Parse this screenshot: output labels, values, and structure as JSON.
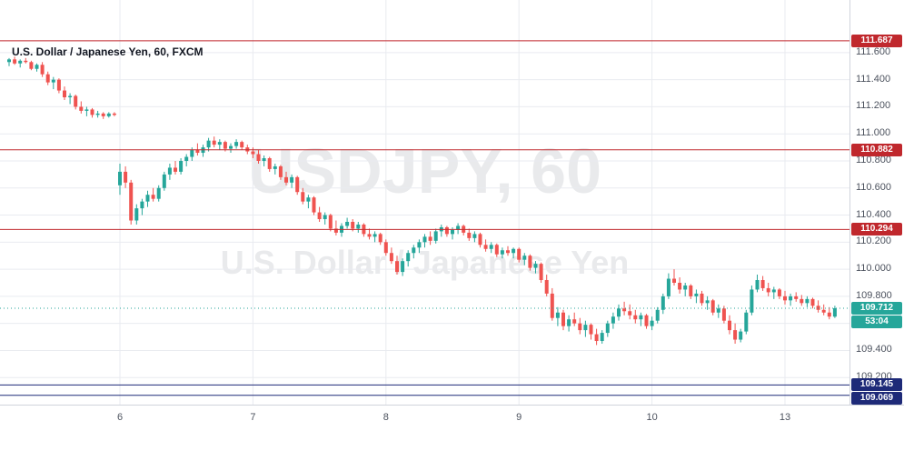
{
  "title": "U.S. Dollar / Japanese Yen, 60, FXCM",
  "watermark": {
    "line1": "USDJPY, 60",
    "line2": "U.S. Dollar / Japanese Yen"
  },
  "colors": {
    "up": "#26a69a",
    "down": "#ef5350",
    "resistance": "#c0282d",
    "support": "#1e2a78",
    "current": "#26a69a",
    "grid": "#e9ebf0",
    "axis_text": "#4c525e",
    "badge_text": "#ffffff"
  },
  "price_axis": {
    "labels": [
      {
        "text": "111.600",
        "price": 111.6
      },
      {
        "text": "111.400",
        "price": 111.4
      },
      {
        "text": "111.200",
        "price": 111.2
      },
      {
        "text": "111.000",
        "price": 111.0
      },
      {
        "text": "110.800",
        "price": 110.8
      },
      {
        "text": "110.600",
        "price": 110.6
      },
      {
        "text": "110.400",
        "price": 110.4
      },
      {
        "text": "110.200",
        "price": 110.2
      },
      {
        "text": "110.000",
        "price": 110.0
      },
      {
        "text": "109.800",
        "price": 109.8
      },
      {
        "text": "109.600",
        "price": 109.6
      },
      {
        "text": "109.400",
        "price": 109.4
      },
      {
        "text": "109.200",
        "price": 109.2
      }
    ],
    "badges": [
      {
        "text": "111.687",
        "price": 111.687,
        "type": "resistance"
      },
      {
        "text": "110.882",
        "price": 110.882,
        "type": "resistance"
      },
      {
        "text": "110.294",
        "price": 110.294,
        "type": "resistance"
      },
      {
        "text": "109.712",
        "price": 109.712,
        "type": "current"
      },
      {
        "text": "53:04",
        "type": "countdown"
      },
      {
        "text": "109.145",
        "price": 109.145,
        "type": "support"
      },
      {
        "text": "109.069",
        "price": 109.069,
        "type": "support"
      }
    ]
  },
  "time_axis": {
    "labels": [
      {
        "text": "6",
        "index": 20
      },
      {
        "text": "7",
        "index": 44
      },
      {
        "text": "8",
        "index": 68
      },
      {
        "text": "9",
        "index": 92
      },
      {
        "text": "10",
        "index": 116
      },
      {
        "text": "13",
        "index": 140
      }
    ]
  },
  "chart_data": {
    "type": "candlestick",
    "symbol": "USDJPY",
    "interval": "60",
    "exchange": "FXCM",
    "title": "U.S. Dollar / Japanese Yen, 60, FXCM",
    "price_range": [
      109.0,
      111.72
    ],
    "grid": true,
    "levels": {
      "resistance": [
        111.687,
        110.882,
        110.294
      ],
      "support": [
        109.145,
        109.069
      ],
      "last_price": 109.712,
      "countdown": "53:04"
    },
    "candles": [
      [
        111.53,
        111.56,
        111.5,
        111.55
      ],
      [
        111.55,
        111.57,
        111.51,
        111.52
      ],
      [
        111.52,
        111.55,
        111.49,
        111.54
      ],
      [
        111.54,
        111.56,
        111.52,
        111.53
      ],
      [
        111.53,
        111.54,
        111.47,
        111.48
      ],
      [
        111.48,
        111.52,
        111.46,
        111.51
      ],
      [
        111.51,
        111.53,
        111.42,
        111.44
      ],
      [
        111.44,
        111.46,
        111.36,
        111.38
      ],
      [
        111.38,
        111.42,
        111.33,
        111.4
      ],
      [
        111.4,
        111.41,
        111.3,
        111.32
      ],
      [
        111.32,
        111.35,
        111.25,
        111.27
      ],
      [
        111.27,
        111.3,
        111.22,
        111.28
      ],
      [
        111.28,
        111.29,
        111.18,
        111.2
      ],
      [
        111.2,
        111.24,
        111.15,
        111.17
      ],
      [
        111.17,
        111.2,
        111.13,
        111.18
      ],
      [
        111.18,
        111.19,
        111.12,
        111.14
      ],
      [
        111.14,
        111.17,
        111.12,
        111.15
      ],
      [
        111.15,
        111.16,
        111.11,
        111.13
      ],
      [
        111.13,
        111.16,
        111.12,
        111.15
      ],
      [
        111.15,
        111.16,
        111.13,
        111.14
      ],
      [
        110.62,
        110.78,
        110.55,
        110.72
      ],
      [
        110.72,
        110.76,
        110.6,
        110.64
      ],
      [
        110.64,
        110.66,
        110.33,
        110.36
      ],
      [
        110.36,
        110.48,
        110.33,
        110.45
      ],
      [
        110.45,
        110.52,
        110.4,
        110.5
      ],
      [
        110.5,
        110.58,
        110.46,
        110.55
      ],
      [
        110.55,
        110.6,
        110.5,
        110.52
      ],
      [
        110.52,
        110.62,
        110.5,
        110.6
      ],
      [
        110.6,
        110.72,
        110.58,
        110.7
      ],
      [
        110.7,
        110.78,
        110.66,
        110.75
      ],
      [
        110.75,
        110.8,
        110.7,
        110.72
      ],
      [
        110.72,
        110.82,
        110.7,
        110.8
      ],
      [
        110.8,
        110.85,
        110.76,
        110.83
      ],
      [
        110.83,
        110.9,
        110.8,
        110.88
      ],
      [
        110.88,
        110.93,
        110.84,
        110.86
      ],
      [
        110.86,
        110.92,
        110.83,
        110.9
      ],
      [
        110.9,
        110.97,
        110.87,
        110.95
      ],
      [
        110.95,
        110.98,
        110.9,
        110.92
      ],
      [
        110.92,
        110.96,
        110.88,
        110.94
      ],
      [
        110.94,
        110.95,
        110.87,
        110.89
      ],
      [
        110.89,
        110.93,
        110.86,
        110.91
      ],
      [
        110.91,
        110.96,
        110.89,
        110.94
      ],
      [
        110.94,
        110.95,
        110.88,
        110.9
      ],
      [
        110.9,
        110.92,
        110.85,
        110.87
      ],
      [
        110.87,
        110.9,
        110.82,
        110.85
      ],
      [
        110.85,
        110.88,
        110.78,
        110.8
      ],
      [
        110.8,
        110.84,
        110.76,
        110.82
      ],
      [
        110.82,
        110.83,
        110.72,
        110.74
      ],
      [
        110.74,
        110.78,
        110.7,
        110.76
      ],
      [
        110.76,
        110.77,
        110.66,
        110.68
      ],
      [
        110.68,
        110.72,
        110.62,
        110.64
      ],
      [
        110.64,
        110.7,
        110.6,
        110.68
      ],
      [
        110.68,
        110.69,
        110.55,
        110.57
      ],
      [
        110.57,
        110.6,
        110.48,
        110.5
      ],
      [
        110.5,
        110.55,
        110.45,
        110.53
      ],
      [
        110.53,
        110.54,
        110.4,
        110.42
      ],
      [
        110.42,
        110.46,
        110.35,
        110.37
      ],
      [
        110.37,
        110.42,
        110.33,
        110.4
      ],
      [
        110.4,
        110.41,
        110.28,
        110.3
      ],
      [
        110.3,
        110.36,
        110.25,
        110.27
      ],
      [
        110.27,
        110.34,
        110.24,
        110.32
      ],
      [
        110.32,
        110.38,
        110.3,
        110.35
      ],
      [
        110.35,
        110.37,
        110.28,
        110.3
      ],
      [
        110.3,
        110.35,
        110.27,
        110.33
      ],
      [
        110.33,
        110.34,
        110.24,
        110.26
      ],
      [
        110.26,
        110.3,
        110.22,
        110.24
      ],
      [
        110.24,
        110.28,
        110.2,
        110.26
      ],
      [
        110.26,
        110.27,
        110.18,
        110.2
      ],
      [
        110.2,
        110.22,
        110.1,
        110.12
      ],
      [
        110.12,
        110.16,
        110.04,
        110.06
      ],
      [
        110.06,
        110.1,
        109.96,
        109.98
      ],
      [
        109.98,
        110.08,
        109.95,
        110.06
      ],
      [
        110.06,
        110.14,
        110.02,
        110.12
      ],
      [
        110.12,
        110.18,
        110.08,
        110.16
      ],
      [
        110.16,
        110.22,
        110.12,
        110.2
      ],
      [
        110.2,
        110.26,
        110.16,
        110.24
      ],
      [
        110.24,
        110.28,
        110.18,
        110.21
      ],
      [
        110.21,
        110.3,
        110.19,
        110.28
      ],
      [
        110.28,
        110.33,
        110.24,
        110.31
      ],
      [
        110.31,
        110.32,
        110.24,
        110.26
      ],
      [
        110.26,
        110.31,
        110.22,
        110.29
      ],
      [
        110.29,
        110.34,
        110.26,
        110.32
      ],
      [
        110.32,
        110.33,
        110.25,
        110.27
      ],
      [
        110.27,
        110.3,
        110.21,
        110.23
      ],
      [
        110.23,
        110.28,
        110.2,
        110.26
      ],
      [
        110.26,
        110.27,
        110.16,
        110.18
      ],
      [
        110.18,
        110.22,
        110.13,
        110.15
      ],
      [
        110.15,
        110.2,
        110.12,
        110.18
      ],
      [
        110.18,
        110.19,
        110.09,
        110.11
      ],
      [
        110.11,
        110.16,
        110.08,
        110.14
      ],
      [
        110.14,
        110.17,
        110.1,
        110.12
      ],
      [
        110.12,
        110.16,
        110.08,
        110.15
      ],
      [
        110.15,
        110.16,
        110.05,
        110.07
      ],
      [
        110.07,
        110.12,
        110.03,
        110.1
      ],
      [
        110.1,
        110.11,
        109.99,
        110.01
      ],
      [
        110.01,
        110.06,
        109.97,
        110.04
      ],
      [
        110.04,
        110.05,
        109.9,
        109.92
      ],
      [
        109.92,
        109.96,
        109.8,
        109.82
      ],
      [
        109.82,
        109.86,
        109.62,
        109.64
      ],
      [
        109.64,
        109.72,
        109.58,
        109.68
      ],
      [
        109.68,
        109.7,
        109.55,
        109.58
      ],
      [
        109.58,
        109.66,
        109.54,
        109.63
      ],
      [
        109.63,
        109.68,
        109.58,
        109.6
      ],
      [
        109.6,
        109.64,
        109.52,
        109.55
      ],
      [
        109.55,
        109.62,
        109.5,
        109.59
      ],
      [
        109.59,
        109.6,
        109.48,
        109.52
      ],
      [
        109.52,
        109.56,
        109.44,
        109.47
      ],
      [
        109.47,
        109.55,
        109.45,
        109.53
      ],
      [
        109.53,
        109.62,
        109.5,
        109.6
      ],
      [
        109.6,
        109.68,
        109.56,
        109.65
      ],
      [
        109.65,
        109.74,
        109.62,
        109.71
      ],
      [
        109.71,
        109.76,
        109.66,
        109.69
      ],
      [
        109.69,
        109.74,
        109.63,
        109.66
      ],
      [
        109.66,
        109.7,
        109.6,
        109.63
      ],
      [
        109.63,
        109.68,
        109.58,
        109.66
      ],
      [
        109.66,
        109.67,
        109.56,
        109.58
      ],
      [
        109.58,
        109.65,
        109.55,
        109.62
      ],
      [
        109.62,
        109.72,
        109.6,
        109.7
      ],
      [
        109.7,
        109.82,
        109.67,
        109.8
      ],
      [
        109.8,
        109.97,
        109.78,
        109.93
      ],
      [
        109.93,
        110.0,
        109.88,
        109.9
      ],
      [
        109.9,
        109.94,
        109.82,
        109.85
      ],
      [
        109.85,
        109.9,
        109.8,
        109.88
      ],
      [
        109.88,
        109.89,
        109.78,
        109.8
      ],
      [
        109.8,
        109.85,
        109.75,
        109.82
      ],
      [
        109.82,
        109.84,
        109.73,
        109.75
      ],
      [
        109.75,
        109.8,
        109.7,
        109.77
      ],
      [
        109.77,
        109.78,
        109.66,
        109.68
      ],
      [
        109.68,
        109.74,
        109.64,
        109.71
      ],
      [
        109.71,
        109.73,
        109.6,
        109.62
      ],
      [
        109.62,
        109.66,
        109.52,
        109.55
      ],
      [
        109.55,
        109.6,
        109.45,
        109.48
      ],
      [
        109.48,
        109.56,
        109.46,
        109.54
      ],
      [
        109.54,
        109.7,
        109.52,
        109.68
      ],
      [
        109.68,
        109.88,
        109.66,
        109.85
      ],
      [
        109.85,
        109.96,
        109.83,
        109.92
      ],
      [
        109.92,
        109.95,
        109.84,
        109.86
      ],
      [
        109.86,
        109.9,
        109.8,
        109.83
      ],
      [
        109.83,
        109.87,
        109.78,
        109.85
      ],
      [
        109.85,
        109.86,
        109.78,
        109.8
      ],
      [
        109.8,
        109.84,
        109.74,
        109.77
      ],
      [
        109.77,
        109.82,
        109.73,
        109.8
      ],
      [
        109.8,
        109.83,
        109.76,
        109.78
      ],
      [
        109.78,
        109.81,
        109.73,
        109.75
      ],
      [
        109.75,
        109.8,
        109.72,
        109.78
      ],
      [
        109.78,
        109.79,
        109.71,
        109.73
      ],
      [
        109.73,
        109.77,
        109.68,
        109.7
      ],
      [
        109.7,
        109.74,
        109.66,
        109.68
      ],
      [
        109.68,
        109.72,
        109.63,
        109.65
      ],
      [
        109.65,
        109.73,
        109.64,
        109.712
      ]
    ]
  }
}
